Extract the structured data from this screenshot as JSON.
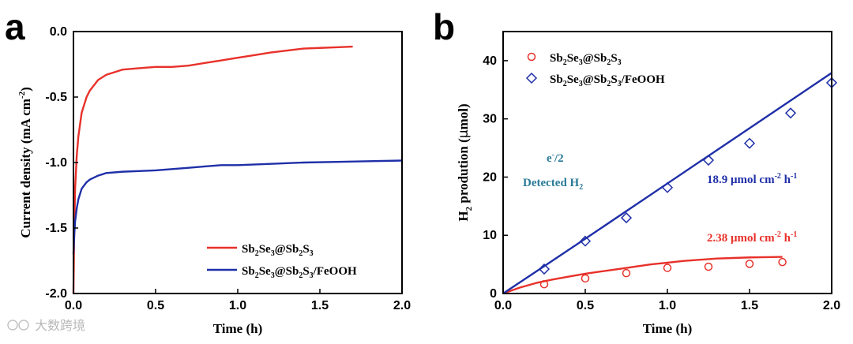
{
  "watermark": "大数跨境",
  "colors": {
    "red": "#e8312a",
    "blue": "#1f2fa8",
    "teal": "#2a7a98"
  },
  "chart_data": [
    {
      "panel": "a",
      "type": "line",
      "title": "",
      "xlabel": "Time (h)",
      "ylabel": "Current density (mA cm-2)",
      "ylabel_main": "Current density (mA cm",
      "ylabel_sup": "-2",
      "ylabel_close": ")",
      "xlim": [
        0.0,
        2.0
      ],
      "ylim": [
        -2.0,
        0.0
      ],
      "xticks": [
        "0.0",
        "0.5",
        "1.0",
        "1.5",
        "2.0"
      ],
      "yticks": [
        "0.0",
        "-0.5",
        "-1.0",
        "-1.5",
        "-2.0"
      ],
      "legend_position": "bottom-right",
      "series": [
        {
          "name": "Sb2Se3@Sb2S3",
          "color": "#e8312a",
          "x": [
            0.0,
            0.005,
            0.01,
            0.02,
            0.03,
            0.05,
            0.08,
            0.1,
            0.15,
            0.2,
            0.25,
            0.3,
            0.4,
            0.5,
            0.6,
            0.7,
            0.8,
            0.9,
            1.0,
            1.1,
            1.2,
            1.3,
            1.4,
            1.5,
            1.6,
            1.7
          ],
          "y": [
            -2.0,
            -1.5,
            -1.2,
            -0.95,
            -0.8,
            -0.62,
            -0.5,
            -0.45,
            -0.37,
            -0.33,
            -0.31,
            -0.29,
            -0.28,
            -0.27,
            -0.27,
            -0.26,
            -0.24,
            -0.22,
            -0.2,
            -0.18,
            -0.16,
            -0.145,
            -0.13,
            -0.125,
            -0.12,
            -0.115
          ]
        },
        {
          "name": "Sb2Se3@Sb2S3/FeOOH",
          "color": "#1f2fa8",
          "x": [
            0.0,
            0.005,
            0.01,
            0.02,
            0.03,
            0.05,
            0.08,
            0.1,
            0.15,
            0.2,
            0.3,
            0.4,
            0.5,
            0.6,
            0.7,
            0.8,
            0.9,
            1.0,
            1.2,
            1.4,
            1.6,
            1.8,
            2.0
          ],
          "y": [
            -1.7,
            -1.55,
            -1.45,
            -1.35,
            -1.28,
            -1.2,
            -1.15,
            -1.13,
            -1.1,
            -1.08,
            -1.07,
            -1.065,
            -1.06,
            -1.05,
            -1.04,
            -1.03,
            -1.02,
            -1.02,
            -1.01,
            -1.0,
            -0.995,
            -0.99,
            -0.985
          ]
        }
      ]
    },
    {
      "panel": "b",
      "type": "scatter",
      "title": "",
      "xlabel": "Time (h)",
      "ylabel": "H2 prodution (μmol)",
      "ylabel_main": "H",
      "ylabel_sub": "2",
      "ylabel_rest": " prodution (",
      "ylabel_mu": "μ",
      "ylabel_tail": "mol)",
      "xlim": [
        0.0,
        2.0
      ],
      "ylim": [
        0,
        45
      ],
      "xticks": [
        "0.0",
        "0.5",
        "1.0",
        "1.5",
        "2.0"
      ],
      "yticks": [
        "0",
        "10",
        "20",
        "30",
        "40"
      ],
      "legend_position": "top-left",
      "series": [
        {
          "name": "Sb2Se3@Sb2S3",
          "marker": "circle",
          "color": "#e8312a",
          "x": [
            0.25,
            0.5,
            0.75,
            1.0,
            1.25,
            1.5,
            1.7
          ],
          "y": [
            1.6,
            2.6,
            3.5,
            4.4,
            4.6,
            5.1,
            5.4
          ]
        },
        {
          "name": "Sb2Se3@Sb2S3/FeOOH",
          "marker": "diamond",
          "color": "#1f2fa8",
          "x": [
            0.25,
            0.5,
            0.75,
            1.0,
            1.25,
            1.5,
            1.75,
            2.0
          ],
          "y": [
            4.2,
            9.0,
            13.0,
            18.2,
            22.9,
            25.8,
            31.0,
            36.2
          ]
        },
        {
          "name": "e-/2 (Sb2Se3@Sb2S3)",
          "marker": "line",
          "color": "#e8312a",
          "x": [
            0.0,
            0.1,
            0.2,
            0.3,
            0.4,
            0.5,
            0.6,
            0.7,
            0.8,
            0.9,
            1.0,
            1.1,
            1.2,
            1.3,
            1.4,
            1.5,
            1.6,
            1.7
          ],
          "y": [
            0.0,
            1.0,
            1.8,
            2.4,
            2.9,
            3.4,
            3.8,
            4.2,
            4.6,
            5.0,
            5.3,
            5.6,
            5.8,
            6.0,
            6.1,
            6.2,
            6.25,
            6.3
          ]
        },
        {
          "name": "e-/2 (Sb2Se3@Sb2S3/FeOOH)",
          "marker": "line",
          "color": "#1f2fa8",
          "x": [
            0.0,
            0.25,
            0.5,
            1.0,
            1.5,
            2.0
          ],
          "y": [
            0.0,
            4.7,
            9.4,
            18.9,
            28.4,
            37.9
          ]
        }
      ],
      "annotations": {
        "e_half": "e-/2",
        "e_half_main": "e",
        "e_half_sup": "-",
        "e_half_tail": "/2",
        "detected_main": "Detected H",
        "detected_sub": "2",
        "rate_blue_main": "18.9 μmol cm",
        "rate_blue_sup1": "-2",
        "rate_blue_mid": " h",
        "rate_blue_sup2": "-1",
        "rate_red_main": "2.38 μmol cm",
        "rate_red_sup1": "-2",
        "rate_red_mid": " h",
        "rate_red_sup2": "-1"
      }
    }
  ]
}
